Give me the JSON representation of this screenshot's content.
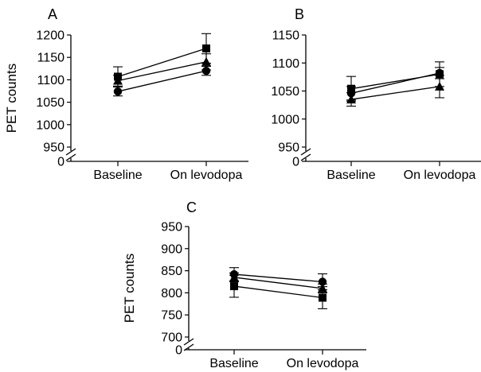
{
  "chart_data": [
    {
      "type": "line",
      "panel_label": "A",
      "ylabel": "PET counts",
      "categories": [
        "Baseline",
        "On levodopa"
      ],
      "yticks": [
        "0",
        "950",
        "1000",
        "1050",
        "1100",
        "1150",
        "1200"
      ],
      "ylim": [
        950,
        1200
      ],
      "axis_break": true,
      "series": [
        {
          "marker": "square",
          "values": [
            1107,
            1170
          ],
          "error": [
            22,
            33
          ]
        },
        {
          "marker": "triangle",
          "values": [
            1098,
            1140
          ],
          "error": [
            12,
            18
          ]
        },
        {
          "marker": "circle",
          "values": [
            1074,
            1120
          ],
          "error": [
            10,
            10
          ]
        }
      ]
    },
    {
      "type": "line",
      "panel_label": "B",
      "ylabel": "",
      "categories": [
        "Baseline",
        "On levodopa"
      ],
      "yticks": [
        "0",
        "950",
        "1000",
        "1050",
        "1100",
        "1150"
      ],
      "ylim": [
        950,
        1150
      ],
      "axis_break": true,
      "series": [
        {
          "marker": "square",
          "values": [
            1054,
            1080
          ],
          "error": [
            22,
            22
          ]
        },
        {
          "marker": "triangle",
          "values": [
            1035,
            1058
          ],
          "error": [
            12,
            20
          ]
        },
        {
          "marker": "circle",
          "values": [
            1046,
            1082
          ],
          "error": [
            12,
            10
          ]
        }
      ]
    },
    {
      "type": "line",
      "panel_label": "C",
      "ylabel": "PET counts",
      "categories": [
        "Baseline",
        "On levodopa"
      ],
      "yticks": [
        "0",
        "700",
        "750",
        "800",
        "850",
        "900",
        "950"
      ],
      "ylim": [
        700,
        950
      ],
      "axis_break": true,
      "series": [
        {
          "marker": "square",
          "values": [
            815,
            789
          ],
          "error": [
            25,
            25
          ]
        },
        {
          "marker": "triangle",
          "values": [
            835,
            810
          ],
          "error": [
            10,
            10
          ]
        },
        {
          "marker": "circle",
          "values": [
            842,
            825
          ],
          "error": [
            15,
            18
          ]
        }
      ]
    }
  ]
}
